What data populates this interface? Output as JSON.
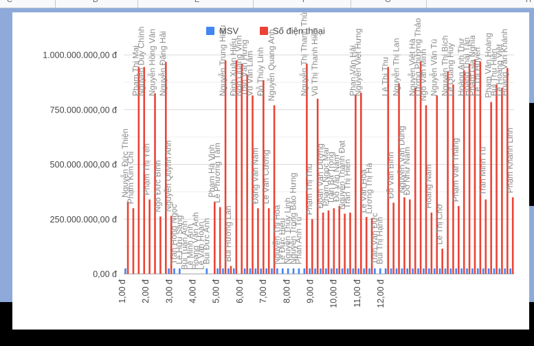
{
  "sheet": {
    "columns": [
      "C",
      "D",
      "E",
      "F",
      "G",
      "H"
    ]
  },
  "chart_data": {
    "type": "bar",
    "legend": [
      {
        "name": "MSV",
        "color": "#4285f4"
      },
      {
        "name": "Số điện thoại",
        "color": "#ea4335"
      }
    ],
    "legend_position": "top",
    "grid": true,
    "ylim": [
      0,
      1000000000
    ],
    "y_ticks": [
      "0,00 đ",
      "250.000.000,00 đ",
      "500.000.000,00 đ",
      "750.000.000,00 đ",
      "1.000.000.000,00 đ"
    ],
    "x_tick_labels": [
      "1,00 đ",
      "2,00 đ",
      "3,00 đ",
      "4,00 đ",
      "5,00 đ",
      "6,00 đ",
      "7,00 đ",
      "8,00 đ",
      "9,00 đ",
      "10,00 đ",
      "11,00 đ",
      "12,00 đ"
    ],
    "categories": [
      "Nguyễn Đức Thiện",
      "Phạm Kim Chi",
      "Phạm Thị Mai",
      "Nguyễn Duy Chính",
      "Phạm Thị Yến",
      "Nguyễn Hồng Vân",
      "Ngô Đức Bình",
      "Nguyễn Đăng Hải",
      "Nguyễn Quỳnh Anh",
      "Trần Hồng Ngọc",
      "Lê Hữu Sang",
      "Bùi Tuấn Anh",
      "Lê Minh Anh",
      "Hoàng Văn Anh",
      "Lê Văn Hoàn",
      "Bùi Đức Anh",
      "Phạm Hà Vinh",
      "Lê Phương Tâm",
      "Nguyễn Trung Hiếu",
      "Bùi Hương Lan",
      "Đinh Xuân Hiếu",
      "Ngô Quang Vinh",
      "Trần Văn Hưng",
      "Vũ Văn Lâm",
      "Đặng Văn Nam",
      "Đỗ Thùy Linh",
      "Lê Văn Cường",
      "Nguyễn Quang Anh",
      "Nguyễn Thị Hoa",
      "Lê Đức Hiếu",
      "Nguyễn Thùy Linh",
      "Nguyễn Trọng Bảo Hưng",
      "Phan Anh Tú",
      "Nguyễn Thị Thanh Thủy",
      "Phạm Thị Thu",
      "Vũ Thị Thanh Hiền",
      "Đoàn Văn Dương",
      "Phạm Ngọc Mai",
      "Trần Bá Trọng",
      "Đỗ Văn Nam",
      "Nguyễn Thành Đạt",
      "Trần Thị Hiền",
      "Phan Văn Hải",
      "Nguyễn Việt Hưng",
      "Lê Văn Hòa",
      "Lương Thị Hà",
      "Trần Văn Đức",
      "Bùi Thị Hạnh",
      "Lê Thị Thu",
      "Đỗ Văn Bình",
      "Nguyễn Thị Lan",
      "Nguyễn Văn Dũng",
      "Đỗ Như Nam",
      "Nguyễn Việt Hà",
      "Lương Phương Thảo",
      "Ngô Văn Minh",
      "Hoàng Nam",
      "Nguyễn Văn Tú",
      "Lê Thị Chớ",
      "Nguyễn Thị Bích",
      "Lê Quang Huy",
      "Phạm Văn Thắng",
      "Hoàng Anh Thư",
      "Hoàng Thái Tân",
      "Phạm Gia Nghĩa",
      "Lê Thị Huyền",
      "Trần Minh Tú",
      "Phạm Văn Hoàng",
      "Bùi Thu Hiền",
      "Lê Hoàng Việt",
      "Hoàng Văn Khánh",
      "Phạm Khánh Linh"
    ],
    "series": [
      {
        "name": "MSV",
        "values": [
          25000000,
          0,
          0,
          0,
          0,
          0,
          0,
          0,
          25000000,
          25000000,
          25000000,
          0,
          0,
          0,
          0,
          25000000,
          0,
          25000000,
          25000000,
          25000000,
          25000000,
          0,
          25000000,
          25000000,
          25000000,
          25000000,
          25000000,
          25000000,
          25000000,
          25000000,
          25000000,
          25000000,
          25000000,
          25000000,
          25000000,
          25000000,
          25000000,
          25000000,
          25000000,
          25000000,
          25000000,
          25000000,
          25000000,
          25000000,
          25000000,
          25000000,
          25000000,
          25000000,
          25000000,
          25000000,
          25000000,
          25000000,
          25000000,
          25000000,
          25000000,
          25000000,
          25000000,
          25000000,
          25000000,
          25000000,
          25000000,
          25000000,
          25000000,
          25000000,
          25000000,
          25000000,
          25000000,
          25000000,
          25000000,
          25000000,
          25000000,
          25000000
        ]
      },
      {
        "name": "Số điện thoại",
        "values": [
          330000000,
          300000000,
          945000000,
          945000000,
          340000000,
          825000000,
          262000000,
          968000000,
          265000000,
          0,
          0,
          0,
          0,
          0,
          0,
          0,
          330000000,
          305000000,
          975000000,
          36000000,
          975000000,
          960000000,
          910000000,
          815000000,
          300000000,
          885000000,
          300000000,
          770000000,
          0,
          0,
          0,
          0,
          0,
          960000000,
          250000000,
          800000000,
          280000000,
          290000000,
          300000000,
          310000000,
          275000000,
          280000000,
          815000000,
          828000000,
          260000000,
          255000000,
          0,
          0,
          945000000,
          325000000,
          870000000,
          350000000,
          340000000,
          850000000,
          970000000,
          770000000,
          280000000,
          815000000,
          115000000,
          925000000,
          865000000,
          310000000,
          930000000,
          960000000,
          980000000,
          970000000,
          340000000,
          785000000,
          865000000,
          850000000,
          940000000,
          350000000
        ]
      }
    ]
  }
}
